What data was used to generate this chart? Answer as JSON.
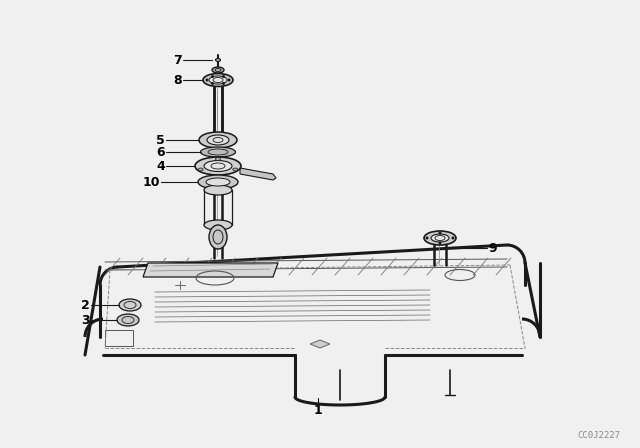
{
  "background_color": "#f0f0f0",
  "line_color": "#1a1a1a",
  "watermark": "CC0J2227",
  "fig_width": 6.4,
  "fig_height": 4.48,
  "dpi": 100
}
